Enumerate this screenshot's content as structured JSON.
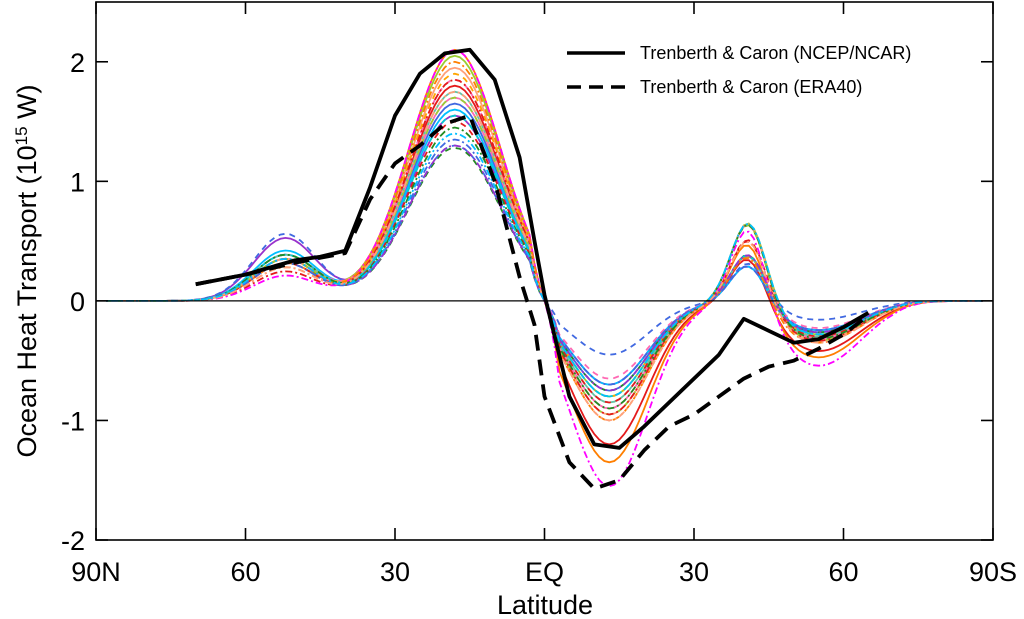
{
  "chart_data": {
    "type": "line",
    "xlabel": "Latitude",
    "ylabel_main": "Ocean Heat Transport (10",
    "ylabel_sup": "15",
    "ylabel_unit": " W)",
    "xlim": [
      90,
      -90
    ],
    "ylim": [
      -2,
      2.5
    ],
    "x_ticks": [
      {
        "value": 90,
        "label": "90N"
      },
      {
        "value": 60,
        "label": "60"
      },
      {
        "value": 30,
        "label": "30"
      },
      {
        "value": 0,
        "label": "EQ"
      },
      {
        "value": -30,
        "label": "30"
      },
      {
        "value": -60,
        "label": "60"
      },
      {
        "value": -90,
        "label": "90S"
      }
    ],
    "y_ticks": [
      {
        "value": 2,
        "label": "2"
      },
      {
        "value": 1,
        "label": "1"
      },
      {
        "value": 0,
        "label": "0"
      },
      {
        "value": -1,
        "label": "-1"
      },
      {
        "value": -2,
        "label": "-2"
      }
    ],
    "legend": {
      "position": "top-right",
      "entries": [
        {
          "label": "Trenberth & Caron (NCEP/NCAR)",
          "style": "solid"
        },
        {
          "label": "Trenberth & Caron (ERA40)",
          "style": "dashed"
        }
      ]
    },
    "observations": [
      {
        "name": "Trenberth & Caron (NCEP/NCAR)",
        "style": "solid",
        "color": "#000000",
        "x": [
          70,
          60,
          50,
          45,
          40,
          35,
          30,
          25,
          20,
          15,
          10,
          5,
          2,
          0,
          -5,
          -10,
          -15,
          -20,
          -25,
          -30,
          -35,
          -40,
          -45,
          -50,
          -55,
          -60,
          -65
        ],
        "y": [
          0.14,
          0.22,
          0.34,
          0.37,
          0.42,
          0.95,
          1.55,
          1.9,
          2.07,
          2.1,
          1.85,
          1.2,
          0.5,
          0.05,
          -0.8,
          -1.2,
          -1.23,
          -1.05,
          -0.85,
          -0.65,
          -0.45,
          -0.15,
          -0.25,
          -0.35,
          -0.32,
          -0.22,
          -0.1
        ]
      },
      {
        "name": "Trenberth & Caron (ERA40)",
        "style": "dashed",
        "color": "#000000",
        "x": [
          70,
          60,
          50,
          45,
          40,
          35,
          30,
          25,
          20,
          15,
          10,
          5,
          2,
          0,
          -5,
          -10,
          -15,
          -20,
          -25,
          -30,
          -35,
          -40,
          -45,
          -50,
          -55,
          -60,
          -65
        ],
        "y": [
          0.14,
          0.22,
          0.32,
          0.36,
          0.4,
          0.85,
          1.15,
          1.3,
          1.48,
          1.55,
          1.0,
          0.2,
          -0.2,
          -0.8,
          -1.35,
          -1.57,
          -1.5,
          -1.25,
          -1.05,
          -0.95,
          -0.8,
          -0.65,
          -0.55,
          -0.5,
          -0.4,
          -0.28,
          -0.12
        ]
      }
    ],
    "model_runs": [
      {
        "color": "#e41a1c",
        "dash": "",
        "amp_n": 1.8,
        "amp_s": -1.2,
        "bump": 0.5
      },
      {
        "color": "#ff7f00",
        "dash": "",
        "amp_n": 2.1,
        "amp_s": -1.35,
        "bump": 0.45
      },
      {
        "color": "#9acd32",
        "dash": "",
        "amp_n": 2.05,
        "amp_s": -0.8,
        "bump": 0.5
      },
      {
        "color": "#4169e1",
        "dash": "",
        "amp_n": 1.65,
        "amp_s": -0.75,
        "bump": 0.55
      },
      {
        "color": "#9932cc",
        "dash": "",
        "amp_n": 1.55,
        "amp_s": -0.7,
        "bump": 0.75
      },
      {
        "color": "#ff69b4",
        "dash": "",
        "amp_n": 1.7,
        "amp_s": -0.9,
        "bump": 0.5
      },
      {
        "color": "#66c2a5",
        "dash": "",
        "amp_n": 1.75,
        "amp_s": -0.85,
        "bump": 0.55
      },
      {
        "color": "#00bfff",
        "dash": "",
        "amp_n": 1.6,
        "amp_s": -0.7,
        "bump": 0.6
      },
      {
        "color": "#ffa07a",
        "dash": "",
        "amp_n": 1.95,
        "amp_s": -0.95,
        "bump": 0.5
      },
      {
        "color": "#228b22",
        "dash": "6,5",
        "amp_n": 1.28,
        "amp_s": -0.75,
        "bump": 0.5
      },
      {
        "color": "#4169e1",
        "dash": "6,5",
        "amp_n": 1.3,
        "amp_s": -0.45,
        "bump": 0.8
      },
      {
        "color": "#ff69b4",
        "dash": "6,5",
        "amp_n": 1.85,
        "amp_s": -0.65,
        "bump": 0.55
      },
      {
        "color": "#ffa500",
        "dash": "6,5",
        "amp_n": 1.9,
        "amp_s": -0.8,
        "bump": 0.5
      },
      {
        "color": "#e41a1c",
        "dash": "6,5",
        "amp_n": 1.5,
        "amp_s": -0.85,
        "bump": 0.45
      },
      {
        "color": "#9acd32",
        "dash": "6,5",
        "amp_n": 1.7,
        "amp_s": -0.95,
        "bump": 0.5
      },
      {
        "color": "#00ced1",
        "dash": "6,5",
        "amp_n": 1.55,
        "amp_s": -0.8,
        "bump": 0.55
      },
      {
        "color": "#e41a1c",
        "dash": "2,3,7,3",
        "amp_n": 1.85,
        "amp_s": -0.95,
        "bump": 0.35
      },
      {
        "color": "#ff00ff",
        "dash": "2,3,7,3",
        "amp_n": 2.1,
        "amp_s": -1.55,
        "bump": 0.3
      },
      {
        "color": "#ff7f00",
        "dash": "2,3,7,3",
        "amp_n": 2.0,
        "amp_s": -1.0,
        "bump": 0.4
      },
      {
        "color": "#4169e1",
        "dash": "2,3,7,3",
        "amp_n": 1.35,
        "amp_s": -0.7,
        "bump": 0.45
      },
      {
        "color": "#228b22",
        "dash": "2,3,7,3",
        "amp_n": 1.45,
        "amp_s": -0.9,
        "bump": 0.55
      },
      {
        "color": "#9932cc",
        "dash": "2,3,7,3",
        "amp_n": 1.3,
        "amp_s": -0.75,
        "bump": 0.5
      },
      {
        "color": "#ffa07a",
        "dash": "2,3,7,3",
        "amp_n": 1.75,
        "amp_s": -1.0,
        "bump": 0.4
      },
      {
        "color": "#00bfff",
        "dash": "2,3,7,3",
        "amp_n": 1.4,
        "amp_s": -0.8,
        "bump": 0.5
      }
    ]
  }
}
